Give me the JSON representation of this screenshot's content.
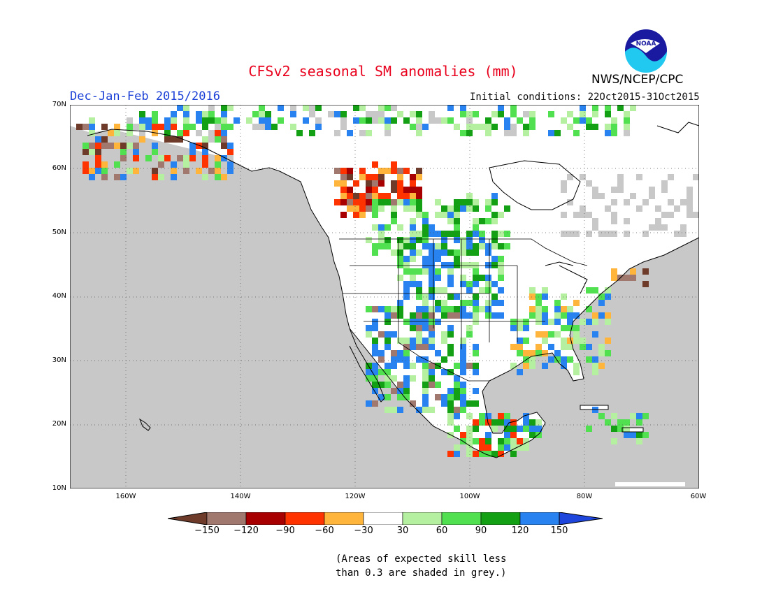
{
  "header": {
    "title": "CFSv2 seasonal SM anomalies (mm)",
    "season": "Dec-Jan-Feb 2015/2016",
    "initial_conditions": "Initial conditions: 22Oct2015-31Oct2015",
    "agency": "NWS/NCEP/CPC",
    "logo_text": "NOAA"
  },
  "map": {
    "region": "North America",
    "lon_range": [
      -172,
      -60
    ],
    "lat_range": [
      10,
      70
    ],
    "background_color": "#c8c8c8",
    "lat_labels": [
      "70N",
      "60N",
      "50N",
      "40N",
      "30N",
      "20N",
      "10N"
    ],
    "lon_labels": [
      "160W",
      "140W",
      "120W",
      "100W",
      "80W",
      "60W"
    ]
  },
  "legend": {
    "tick_labels": [
      "-150",
      "-120",
      "-90",
      "-60",
      "-30",
      "30",
      "60",
      "90",
      "120",
      "150"
    ],
    "colors": [
      "#6e3a2a",
      "#a0786e",
      "#a80000",
      "#ff3300",
      "#ffb43c",
      "#ffffff",
      "#b4f0a0",
      "#50e050",
      "#14a014",
      "#2882f0",
      "#1e46dc"
    ]
  },
  "note": {
    "line1": "(Areas of expected skill less",
    "line2": " than 0.3 are shaded in grey.)"
  }
}
